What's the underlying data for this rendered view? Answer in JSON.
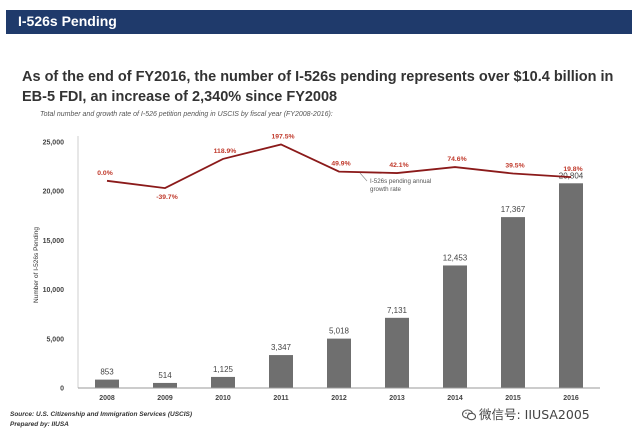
{
  "header": {
    "title": "I-526s Pending"
  },
  "headline": "As of the end of FY2016, the number of I-526s pending represents over $10.4 billion in EB-5 FDI, an increase of 2,340% since FY2008",
  "subtitle": "Total number and growth rate of I-526 petition pending in USCIS by fiscal year (FY2008-2016):",
  "chart_data": {
    "type": "bar",
    "categories": [
      "2008",
      "2009",
      "2010",
      "2011",
      "2012",
      "2013",
      "2014",
      "2015",
      "2016"
    ],
    "series": [
      {
        "values": [
          853,
          514,
          1125,
          3347,
          5018,
          7131,
          12453,
          17367,
          20804
        ]
      }
    ],
    "value_labels": [
      "853",
      "514",
      "1,125",
      "3,347",
      "5,018",
      "7,131",
      "12,453",
      "17,367",
      "20,804"
    ],
    "line_series": {
      "name": "I-526s pending annual growth rate",
      "values": [
        0.0,
        -39.7,
        118.9,
        197.5,
        49.9,
        42.1,
        74.6,
        39.5,
        19.8
      ],
      "labels": [
        "0.0%",
        "-39.7%",
        "118.9%",
        "197.5%",
        "49.9%",
        "42.1%",
        "74.6%",
        "39.5%",
        "19.8%"
      ]
    },
    "ylabel": "Number of I-526s Pending",
    "xlabel": "",
    "ylim": [
      0,
      25000
    ],
    "yticks": [
      0,
      5000,
      10000,
      15000,
      20000,
      25000
    ],
    "ytick_labels": [
      "0",
      "5,000",
      "10,000",
      "15,000",
      "20,000",
      "25,000"
    ],
    "grid": false,
    "colors": {
      "bars": "#6f6f6f",
      "line": "#8b1a1a",
      "line_labels": "#c0392b"
    }
  },
  "source": {
    "line1": "Source: U.S. Citizenship and Immigration Services (USCIS)",
    "line2": "Prepared by: IIUSA"
  },
  "watermark": {
    "text": "微信号: IIUSA2005",
    "icon": "wechat-icon"
  }
}
